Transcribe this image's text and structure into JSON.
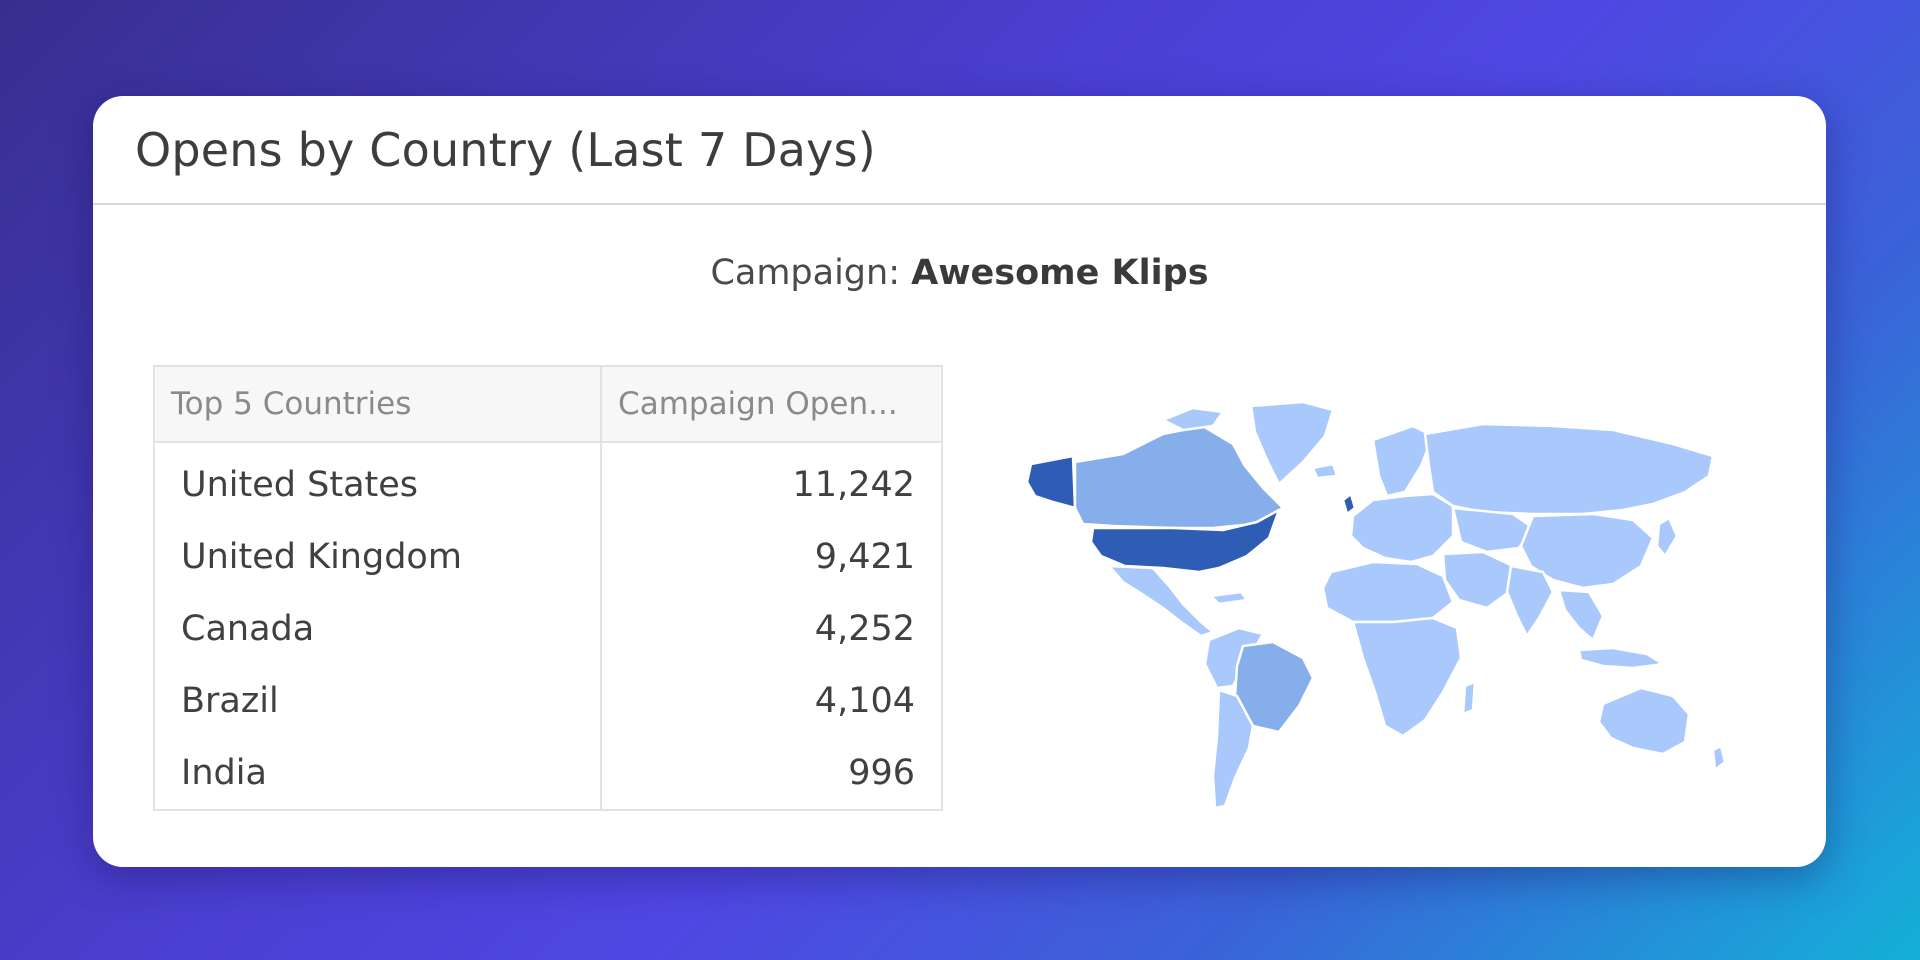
{
  "widget": {
    "title": "Opens by Country (Last 7 Days)",
    "subtitle_prefix": "Campaign: ",
    "subtitle_value": "Awesome Klips"
  },
  "table": {
    "columns": [
      "Top 5 Countries",
      "Campaign Open..."
    ],
    "rows": [
      {
        "country": "United States",
        "opens": "11,242"
      },
      {
        "country": "United Kingdom",
        "opens": "9,421"
      },
      {
        "country": "Canada",
        "opens": "4,252"
      },
      {
        "country": "Brazil",
        "opens": "4,104"
      },
      {
        "country": "India",
        "opens": "996"
      }
    ]
  },
  "map": {
    "colors": {
      "highest": "#2f5cb5",
      "high": "#4f7fd6",
      "medium": "#86aeea",
      "low": "#a9c8fb"
    },
    "regions": [
      {
        "name": "United States",
        "value": 11242,
        "level": "highest"
      },
      {
        "name": "United Kingdom",
        "value": 9421,
        "level": "highest"
      },
      {
        "name": "Canada",
        "value": 4252,
        "level": "medium"
      },
      {
        "name": "Brazil",
        "value": 4104,
        "level": "medium"
      },
      {
        "name": "India",
        "value": 996,
        "level": "low"
      }
    ]
  }
}
